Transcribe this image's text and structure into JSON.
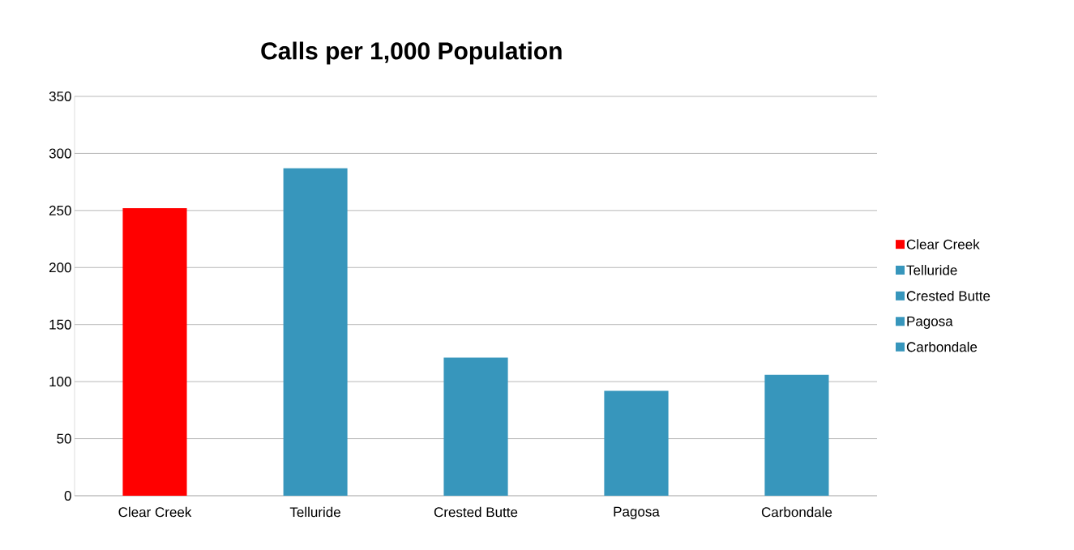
{
  "chart_data": {
    "type": "bar",
    "title": "Calls per 1,000 Population",
    "categories": [
      "Clear Creek",
      "Telluride",
      "Crested Butte",
      "Pagosa",
      "Carbondale"
    ],
    "series": [
      {
        "name": "Clear Creek",
        "color": "#ff0000",
        "values": [
          252,
          null,
          null,
          null,
          null
        ]
      },
      {
        "name": "Telluride",
        "color": "#3796bc",
        "values": [
          null,
          287,
          null,
          null,
          null
        ]
      },
      {
        "name": "Crested Butte",
        "color": "#3796bc",
        "values": [
          null,
          null,
          121,
          null,
          null
        ]
      },
      {
        "name": "Pagosa",
        "color": "#3796bc",
        "values": [
          null,
          null,
          null,
          92,
          null
        ]
      },
      {
        "name": "Carbondale",
        "color": "#3796bc",
        "values": [
          null,
          null,
          null,
          null,
          106
        ]
      }
    ],
    "ylim": [
      0,
      350
    ],
    "yticks": [
      0,
      50,
      100,
      150,
      200,
      250,
      300,
      350
    ],
    "grid": "y",
    "legend": "right"
  }
}
